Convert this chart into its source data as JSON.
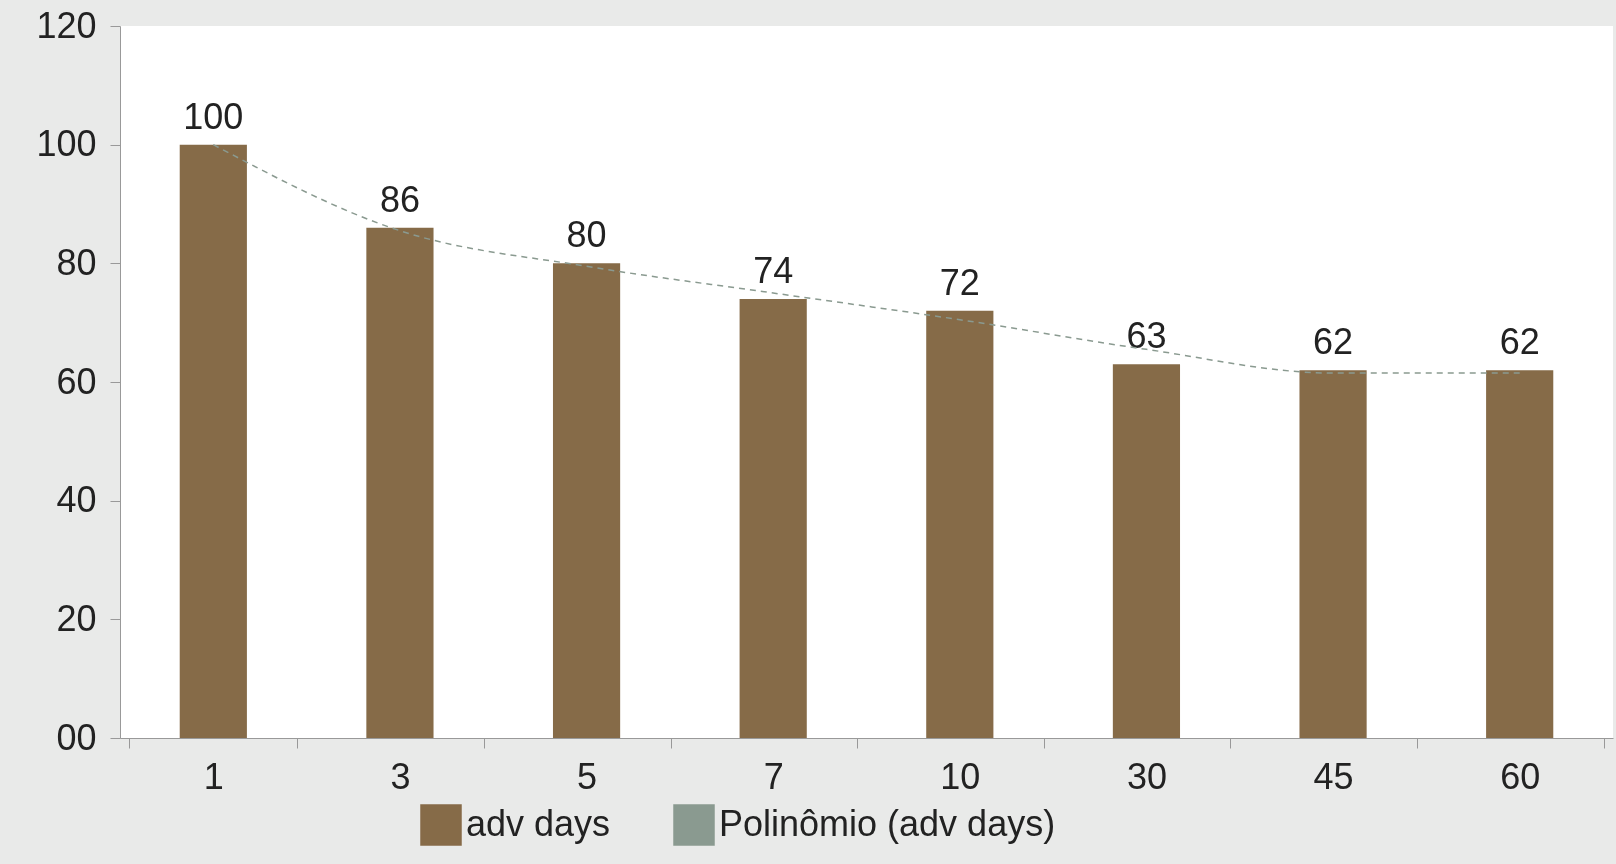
{
  "chart_data": {
    "type": "bar",
    "categories": [
      "1",
      "3",
      "5",
      "7",
      "10",
      "30",
      "45",
      "60"
    ],
    "series": [
      {
        "name": "adv days",
        "color": "#866b48",
        "values": [
          100,
          86,
          80,
          74,
          72,
          63,
          62,
          62
        ],
        "value_labels": [
          "100",
          "86",
          "80",
          "74",
          "72",
          "63",
          "62",
          "62"
        ]
      },
      {
        "name": "Polinômio (adv days)",
        "type": "line",
        "color": "#8a9a90",
        "line_style": "dashed",
        "x": [
          "1",
          "3",
          "5",
          "7",
          "10",
          "30",
          "45",
          "60"
        ],
        "values": [
          100,
          85.5,
          79.5,
          75,
          70.5,
          65.5,
          61.5,
          61.5
        ]
      }
    ],
    "ylim": [
      0,
      120
    ],
    "yticks": [
      {
        "value": 0,
        "label": "00"
      },
      20,
      40,
      60,
      80,
      100,
      120
    ],
    "grid": false,
    "legend": "bottom"
  }
}
